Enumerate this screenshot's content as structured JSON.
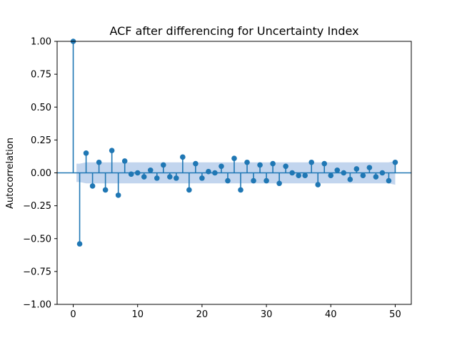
{
  "chart_data": {
    "type": "scatter",
    "subtype": "stem",
    "title": "ACF after differencing for Uncertainty Index",
    "xlabel": "",
    "ylabel": "Autocorrelation",
    "xlim": [
      -2.5,
      52.5
    ],
    "ylim": [
      -1.0,
      1.0
    ],
    "xticks": [
      0,
      10,
      20,
      30,
      40,
      50
    ],
    "yticks": [
      -1.0,
      -0.75,
      -0.5,
      -0.25,
      0.0,
      0.25,
      0.5,
      0.75,
      1.0
    ],
    "ytick_labels": [
      "−1.00",
      "−0.75",
      "−0.50",
      "−0.25",
      "0.00",
      "0.25",
      "0.50",
      "0.75",
      "1.00"
    ],
    "xtick_labels": [
      "0",
      "10",
      "20",
      "30",
      "40",
      "50"
    ],
    "grid": false,
    "colors": {
      "marker": "#1f77b4",
      "confidence_band": "#aec7e8",
      "axis": "#000000"
    },
    "lags": [
      0,
      1,
      2,
      3,
      4,
      5,
      6,
      7,
      8,
      9,
      10,
      11,
      12,
      13,
      14,
      15,
      16,
      17,
      18,
      19,
      20,
      21,
      22,
      23,
      24,
      25,
      26,
      27,
      28,
      29,
      30,
      31,
      32,
      33,
      34,
      35,
      36,
      37,
      38,
      39,
      40,
      41,
      42,
      43,
      44,
      45,
      46,
      47,
      48,
      49,
      50
    ],
    "values": [
      1.0,
      -0.54,
      0.15,
      -0.1,
      0.08,
      -0.13,
      0.17,
      -0.17,
      0.09,
      -0.01,
      0.0,
      -0.03,
      0.02,
      -0.04,
      0.06,
      -0.03,
      -0.04,
      0.12,
      -0.13,
      0.07,
      -0.04,
      0.01,
      0.0,
      0.05,
      -0.06,
      0.11,
      -0.13,
      0.08,
      -0.06,
      0.06,
      -0.06,
      0.07,
      -0.08,
      0.05,
      0.0,
      -0.02,
      -0.02,
      0.08,
      -0.09,
      0.07,
      -0.02,
      0.02,
      0.0,
      -0.05,
      0.03,
      -0.02,
      0.04,
      -0.03,
      0.0,
      -0.06,
      0.08
    ],
    "confidence_band_upper": [
      0.07,
      0.07,
      0.08,
      0.08,
      0.08,
      0.08,
      0.08,
      0.08,
      0.08,
      0.08,
      0.08,
      0.08,
      0.08,
      0.08,
      0.08,
      0.08,
      0.08,
      0.08,
      0.08,
      0.08,
      0.08,
      0.08,
      0.08,
      0.08,
      0.08,
      0.08,
      0.08,
      0.08,
      0.08,
      0.08,
      0.08,
      0.08,
      0.08,
      0.08,
      0.08,
      0.08,
      0.08,
      0.08,
      0.08,
      0.08,
      0.08,
      0.08,
      0.08,
      0.08,
      0.08,
      0.08,
      0.08,
      0.08,
      0.08,
      0.08,
      0.09
    ]
  }
}
